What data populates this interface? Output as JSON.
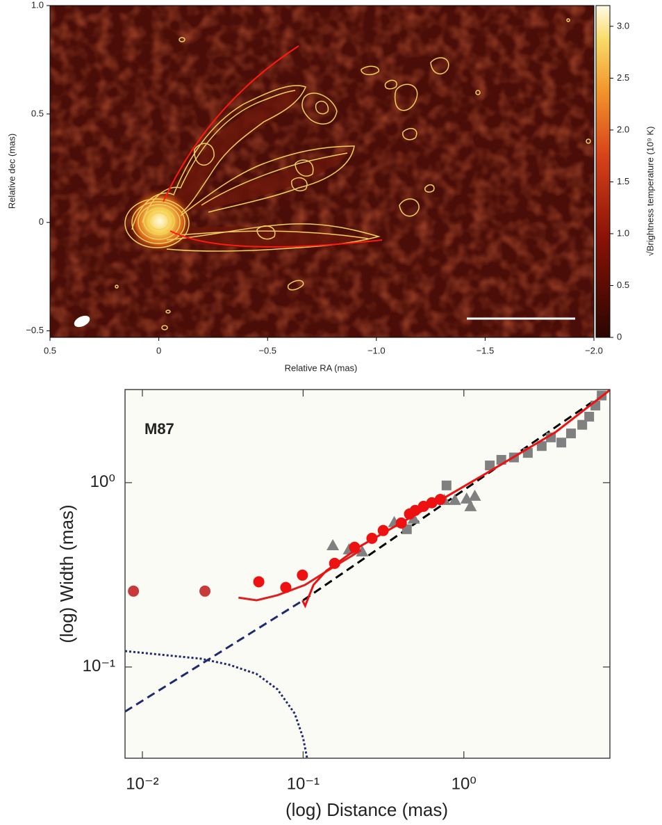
{
  "chart_data": [
    {
      "type": "image",
      "xlabel": "Relative RA (mas)",
      "ylabel": "Relative dec (mas)",
      "xlim": [
        0.5,
        -2.0
      ],
      "ylim": [
        -0.53,
        1.0
      ],
      "xticks": [
        0.5,
        0,
        {
          "value": -0.5,
          "label": "−0.5"
        },
        {
          "value": -1.0,
          "label": "−1.0"
        },
        {
          "value": -1.5,
          "label": "−1.5"
        },
        {
          "value": -2.0,
          "label": "−2.0"
        }
      ],
      "yticks": [
        {
          "value": 1.0,
          "label": "1.0"
        },
        0.5,
        0,
        {
          "value": -0.5,
          "label": "−0.5"
        }
      ],
      "colorbar": {
        "label": "√Brightness temperature (10⁹ K)",
        "lim": [
          0,
          3.2
        ],
        "ticks": [
          0,
          0.5,
          {
            "value": 1,
            "label": "1.0"
          },
          1.5,
          {
            "value": 2,
            "label": "2.0"
          },
          2.5,
          {
            "value": 3,
            "label": "3.0"
          }
        ]
      }
    },
    {
      "type": "scatter",
      "title": "M87",
      "xlabel": "(log) Distance (mas)",
      "ylabel": "(log) Width (mas)",
      "xscale": "log",
      "yscale": "log",
      "xlim": [
        0.0078,
        8.1
      ],
      "ylim": [
        0.032,
        3.2
      ],
      "xticks": [
        {
          "value": 0.01,
          "label": "10⁻²"
        },
        {
          "value": 0.1,
          "label": "10⁻¹"
        },
        {
          "value": 1,
          "label": "10⁰"
        }
      ],
      "yticks": [
        {
          "value": 0.1,
          "label": "10⁻¹"
        },
        {
          "value": 1,
          "label": "10⁰"
        }
      ],
      "series": [
        {
          "style": "dotted",
          "color": "#1f2a6e",
          "x": [
            0.0078,
            0.0231,
            0.0345,
            0.0513,
            0.0692,
            0.0887,
            0.1,
            0.106
          ],
          "values": [
            0.122,
            0.111,
            0.103,
            0.0917,
            0.0757,
            0.0559,
            0.0412,
            0.0318
          ]
        },
        {
          "style": "dashed",
          "color": "#1f2a6e",
          "x": [
            0.0078,
            0.1
          ],
          "values": [
            0.0573,
            0.23
          ]
        },
        {
          "style": "dashed",
          "color": "#000000",
          "x": [
            0.1,
            8.1
          ],
          "values": [
            0.23,
            3.19
          ]
        },
        {
          "marker": "square",
          "color": "#808080",
          "x": [
            0.442,
            0.78,
            1.45,
            1.71,
            2.05,
            2.5,
            3.05,
            3.48,
            4.04,
            4.64,
            5.45,
            6.02,
            6.58,
            7.2
          ],
          "values": [
            0.559,
            0.966,
            1.24,
            1.33,
            1.37,
            1.45,
            1.58,
            1.76,
            1.65,
            1.85,
            2.06,
            2.28,
            2.62,
            2.97
          ]
        },
        {
          "marker": "triangle",
          "color": "#808080",
          "x": [
            0.153,
            0.193,
            0.233,
            0.369,
            0.488,
            0.756,
            0.879,
            1.04,
            1.1,
            1.17
          ],
          "values": [
            0.457,
            0.434,
            0.423,
            0.61,
            0.637,
            0.805,
            0.805,
            0.819,
            0.744,
            0.848
          ]
        },
        {
          "style": "solid",
          "color": "#dd1f1f",
          "x": [
            0.0396,
            0.0513,
            0.0692,
            0.103,
            0.153,
            0.229
          ],
          "values": [
            0.238,
            0.23,
            0.245,
            0.279,
            0.347,
            0.43
          ]
        },
        {
          "style": "solid",
          "color": "#ee1111",
          "x": [
            0.099,
            0.103,
            0.116,
            0.139,
            0.229,
            0.508,
            1.37,
            3.72,
            8.1
          ],
          "values": [
            0.23,
            0.215,
            0.279,
            0.332,
            0.454,
            0.676,
            1.12,
            1.88,
            3.18
          ]
        },
        {
          "marker": "circle",
          "color": "#c83a3a",
          "x": [
            0.0088,
            0.0245
          ],
          "values": [
            0.258,
            0.258
          ]
        },
        {
          "marker": "circle",
          "color": "#ee1111",
          "x": [
            0.053,
            0.078,
            0.099,
            0.157,
            0.209,
            0.268,
            0.315,
            0.408,
            0.459,
            0.498,
            0.561,
            0.632,
            0.713
          ],
          "values": [
            0.29,
            0.27,
            0.315,
            0.365,
            0.446,
            0.499,
            0.55,
            0.604,
            0.676,
            0.707,
            0.744,
            0.778,
            0.811
          ]
        }
      ]
    }
  ]
}
